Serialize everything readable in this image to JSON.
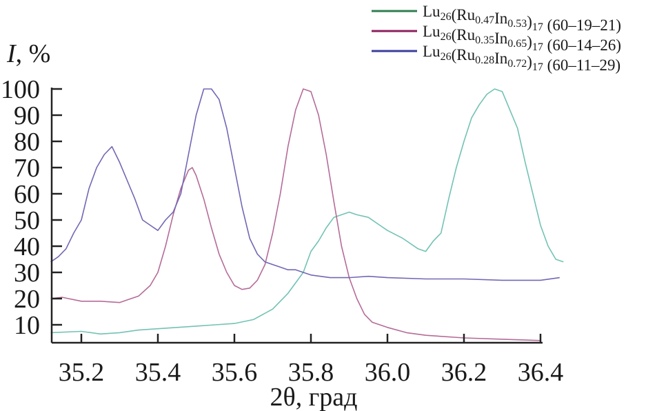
{
  "chart_data": {
    "type": "line",
    "title": "",
    "xlabel": "2θ, град",
    "ylabel_italic": "I",
    "ylabel_rest": ", %",
    "xlim": [
      35.12,
      36.46
    ],
    "ylim": [
      3,
      100
    ],
    "xticks": [
      "35.2",
      "35.4",
      "35.6",
      "35.8",
      "36.0",
      "36.2",
      "36.4"
    ],
    "xtick_values": [
      35.2,
      35.4,
      35.6,
      35.8,
      36.0,
      36.2,
      36.4
    ],
    "yticks": [
      "10",
      "20",
      "30",
      "40",
      "50",
      "60",
      "70",
      "80",
      "90",
      "100"
    ],
    "ytick_values": [
      10,
      20,
      30,
      40,
      50,
      60,
      70,
      80,
      90,
      100
    ],
    "grid": false,
    "legend_placement": "top-right",
    "series": [
      {
        "name": "Lu26(Ru0.47In0.53)17 (60–19–21)",
        "legend": {
          "base": "Lu",
          "s1": "26",
          "mid1": "(Ru",
          "s2": "0.47",
          "mid2": "In",
          "s3": "0.53",
          "mid3": ")",
          "s4": "17",
          "tail": " (60–19–21)"
        },
        "legend_color": "#2e7d4f",
        "line_color": "#72c2b4",
        "x": [
          35.12,
          35.2,
          35.25,
          35.3,
          35.35,
          35.4,
          35.45,
          35.5,
          35.55,
          35.6,
          35.65,
          35.7,
          35.74,
          35.78,
          35.8,
          35.82,
          35.84,
          35.86,
          35.88,
          35.9,
          35.92,
          35.95,
          35.98,
          36.0,
          36.04,
          36.08,
          36.1,
          36.12,
          36.14,
          36.16,
          36.18,
          36.2,
          36.22,
          36.24,
          36.26,
          36.28,
          36.3,
          36.32,
          36.34,
          36.36,
          36.38,
          36.4,
          36.42,
          36.44,
          36.46
        ],
        "y": [
          7,
          7.5,
          6.5,
          7,
          8,
          8.5,
          9,
          9.5,
          10,
          10.5,
          12,
          16,
          22,
          30,
          38,
          42,
          47,
          51,
          52,
          53,
          52,
          51,
          48,
          46,
          43,
          39,
          38,
          42,
          45,
          58,
          70,
          80,
          89,
          94,
          98,
          100,
          99,
          92,
          85,
          72,
          60,
          48,
          40,
          35,
          34
        ]
      },
      {
        "name": "Lu26(Ru0.35In0.65)17 (60–14–26)",
        "legend": {
          "base": "Lu",
          "s1": "26",
          "mid1": "(Ru",
          "s2": "0.35",
          "mid2": "In",
          "s3": "0.65",
          "mid3": ")",
          "s4": "17",
          "tail": " (60–14–26)"
        },
        "legend_color": "#8b1f5e",
        "line_color": "#b56b98",
        "x": [
          35.12,
          35.15,
          35.2,
          35.25,
          35.3,
          35.32,
          35.35,
          35.38,
          35.4,
          35.42,
          35.44,
          35.46,
          35.48,
          35.49,
          35.5,
          35.52,
          35.54,
          35.56,
          35.58,
          35.6,
          35.62,
          35.64,
          35.66,
          35.68,
          35.7,
          35.72,
          35.74,
          35.76,
          35.78,
          35.8,
          35.82,
          35.84,
          35.86,
          35.88,
          35.9,
          35.92,
          35.94,
          35.96,
          36.0,
          36.05,
          36.1,
          36.2,
          36.3,
          36.4
        ],
        "y": [
          20,
          20.5,
          19,
          19,
          18.5,
          19.5,
          21,
          25,
          30,
          40,
          52,
          62,
          69,
          70,
          67,
          58,
          47,
          37,
          30,
          25,
          23.5,
          24,
          27,
          33,
          45,
          60,
          78,
          92,
          100,
          99,
          90,
          75,
          57,
          40,
          28,
          20,
          14,
          11,
          9,
          7,
          6,
          5,
          4.5,
          4
        ]
      },
      {
        "name": "Lu26(Ru0.28In0.72)17 (60–11–29)",
        "legend": {
          "base": "Lu",
          "s1": "26",
          "mid1": "(Ru",
          "s2": "0.28",
          "mid2": "In",
          "s3": "0.72",
          "mid3": ")",
          "s4": "17",
          "tail": " (60–11–29)"
        },
        "legend_color": "#3a3d9a",
        "line_color": "#7068b4",
        "x": [
          35.12,
          35.14,
          35.16,
          35.18,
          35.2,
          35.22,
          35.24,
          35.26,
          35.28,
          35.3,
          35.32,
          35.34,
          35.36,
          35.38,
          35.4,
          35.42,
          35.44,
          35.46,
          35.48,
          35.5,
          35.52,
          35.54,
          35.56,
          35.58,
          35.6,
          35.62,
          35.64,
          35.66,
          35.68,
          35.7,
          35.72,
          35.74,
          35.76,
          35.78,
          35.8,
          35.85,
          35.9,
          35.95,
          36.0,
          36.1,
          36.2,
          36.3,
          36.4,
          36.45
        ],
        "y": [
          34,
          36,
          39,
          45,
          50,
          62,
          70,
          75,
          78,
          72,
          65,
          58,
          50,
          48,
          46,
          50,
          53,
          60,
          75,
          90,
          100,
          100,
          96,
          85,
          70,
          55,
          43,
          37,
          34,
          33,
          32,
          31,
          31,
          30,
          29,
          28,
          28,
          28.5,
          28,
          27.5,
          27.5,
          27,
          27,
          28
        ]
      }
    ]
  }
}
